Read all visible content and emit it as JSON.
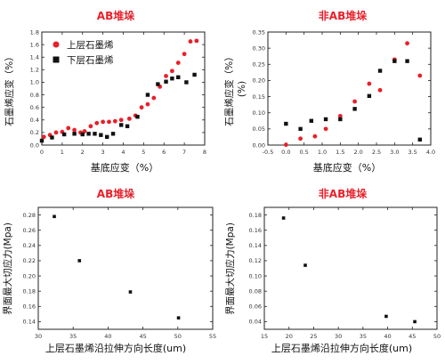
{
  "chart_data": [
    {
      "type": "scatter",
      "title": "AB堆垛",
      "xlabel": "基底应变（%）",
      "ylabel": "石墨烯应变（%）",
      "xlim": [
        0,
        8
      ],
      "ylim": [
        0,
        1.8
      ],
      "xticks": [
        "0",
        "1",
        "2",
        "3",
        "4",
        "5",
        "6",
        "7",
        "8"
      ],
      "yticks": [
        "0.0",
        "0.2",
        "0.4",
        "0.6",
        "0.8",
        "1.0",
        "1.2",
        "1.4",
        "1.6",
        "1.8"
      ],
      "legend": "top-left",
      "series": [
        {
          "name": "上层石墨烯",
          "marker": "circle",
          "color": "#e8202a",
          "points": [
            [
              0.1,
              0.13
            ],
            [
              0.4,
              0.16
            ],
            [
              0.7,
              0.2
            ],
            [
              1.0,
              0.21
            ],
            [
              1.3,
              0.27
            ],
            [
              1.6,
              0.24
            ],
            [
              1.9,
              0.2
            ],
            [
              2.1,
              0.22
            ],
            [
              2.4,
              0.3
            ],
            [
              2.7,
              0.35
            ],
            [
              3.0,
              0.37
            ],
            [
              3.3,
              0.37
            ],
            [
              3.6,
              0.38
            ],
            [
              3.9,
              0.4
            ],
            [
              4.3,
              0.42
            ],
            [
              4.6,
              0.47
            ],
            [
              4.9,
              0.6
            ],
            [
              5.2,
              0.65
            ],
            [
              5.5,
              0.75
            ],
            [
              5.8,
              0.93
            ],
            [
              6.1,
              1.1
            ],
            [
              6.4,
              1.18
            ],
            [
              6.7,
              1.31
            ],
            [
              7.0,
              1.45
            ],
            [
              7.3,
              1.65
            ],
            [
              7.6,
              1.66
            ]
          ]
        },
        {
          "name": "下层石墨烯",
          "marker": "square",
          "color": "#111111",
          "points": [
            [
              0.0,
              0.07
            ],
            [
              0.5,
              0.12
            ],
            [
              1.1,
              0.17
            ],
            [
              1.6,
              0.18
            ],
            [
              2.0,
              0.17
            ],
            [
              2.3,
              0.18
            ],
            [
              2.6,
              0.18
            ],
            [
              2.9,
              0.16
            ],
            [
              3.2,
              0.13
            ],
            [
              3.5,
              0.18
            ],
            [
              3.9,
              0.32
            ],
            [
              4.2,
              0.3
            ],
            [
              4.7,
              0.45
            ],
            [
              5.2,
              0.8
            ],
            [
              5.7,
              0.97
            ],
            [
              6.1,
              1.01
            ],
            [
              6.4,
              1.06
            ],
            [
              6.7,
              1.08
            ],
            [
              7.1,
              1.0
            ],
            [
              7.5,
              1.12
            ]
          ]
        }
      ]
    },
    {
      "type": "scatter",
      "title": "非AB堆垛",
      "xlabel": "基底应变（%）",
      "ylabel": "石墨烯应变（%）",
      "ylabel_unit": "(%)",
      "xlim": [
        -0.5,
        4.0
      ],
      "ylim": [
        0.0,
        0.35
      ],
      "xticks": [
        "-0.5",
        "0.0",
        "0.5",
        "1.0",
        "1.5",
        "2.0",
        "2.5",
        "3.0",
        "3.5",
        "4.0"
      ],
      "yticks": [
        "0.00",
        "0.05",
        "0.10",
        "0.15",
        "0.20",
        "0.25",
        "0.30",
        "0.35"
      ],
      "series": [
        {
          "name": "上层石墨烯",
          "marker": "circle",
          "color": "#e8202a",
          "points": [
            [
              0.0,
              0.001
            ],
            [
              0.4,
              0.02
            ],
            [
              0.8,
              0.027
            ],
            [
              1.1,
              0.05
            ],
            [
              1.5,
              0.09
            ],
            [
              1.9,
              0.135
            ],
            [
              2.3,
              0.19
            ],
            [
              2.6,
              0.17
            ],
            [
              3.0,
              0.265
            ],
            [
              3.35,
              0.315
            ],
            [
              3.7,
              0.215
            ]
          ]
        },
        {
          "name": "下层石墨烯",
          "marker": "square",
          "color": "#111111",
          "points": [
            [
              0.0,
              0.066
            ],
            [
              0.4,
              0.05
            ],
            [
              0.7,
              0.075
            ],
            [
              1.1,
              0.08
            ],
            [
              1.5,
              0.08
            ],
            [
              1.9,
              0.112
            ],
            [
              2.3,
              0.152
            ],
            [
              2.6,
              0.23
            ],
            [
              3.0,
              0.26
            ],
            [
              3.35,
              0.26
            ],
            [
              3.7,
              0.017
            ]
          ]
        }
      ]
    },
    {
      "type": "scatter",
      "title": "AB堆垛",
      "xlabel": "上层石墨烯沿拉伸方向长度(um)",
      "ylabel": "界面最大切应力(Mpa)",
      "xlim": [
        30,
        55
      ],
      "ylim": [
        0.13,
        0.29
      ],
      "xticks": [
        "30",
        "35",
        "40",
        "45",
        "50",
        "55"
      ],
      "yticks": [
        "0.14",
        "0.16",
        "0.18",
        "0.20",
        "0.22",
        "0.24",
        "0.26",
        "0.28"
      ],
      "series": [
        {
          "marker": "square",
          "color": "#111111",
          "points": [
            [
              32.3,
              0.278
            ],
            [
              35.9,
              0.22
            ],
            [
              43.2,
              0.179
            ],
            [
              50.1,
              0.145
            ]
          ]
        }
      ]
    },
    {
      "type": "scatter",
      "title": "非AB堆垛",
      "xlabel": "上层石墨烯沿拉伸方向长度(um)",
      "ylabel": "界面最大切应力(Mpa)",
      "xlim": [
        15,
        50
      ],
      "ylim": [
        0.03,
        0.19
      ],
      "xticks": [
        "15",
        "20",
        "25",
        "30",
        "35",
        "40",
        "45",
        "50"
      ],
      "yticks": [
        "0.04",
        "0.06",
        "0.08",
        "0.10",
        "0.12",
        "0.14",
        "0.16",
        "0.18"
      ],
      "series": [
        {
          "marker": "square",
          "color": "#111111",
          "points": [
            [
              18.9,
              0.176
            ],
            [
              23.3,
              0.114
            ],
            [
              39.7,
              0.047
            ],
            [
              45.5,
              0.04
            ]
          ]
        }
      ]
    }
  ],
  "style": {
    "title_color": "#e8202a",
    "axis_color": "#222222"
  }
}
